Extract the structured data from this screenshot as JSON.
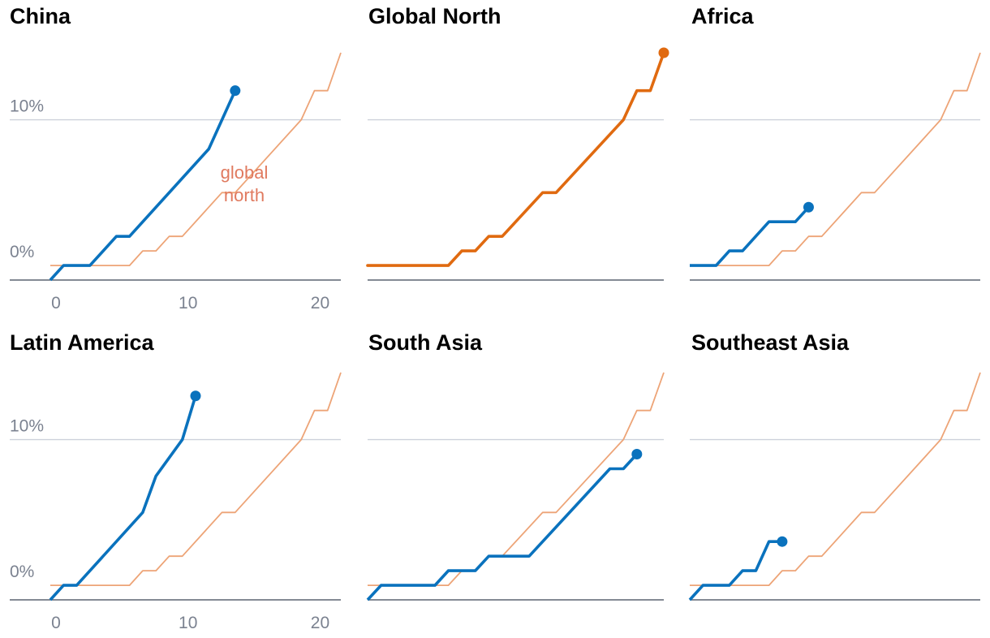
{
  "chart_data": {
    "type": "line",
    "x_axis": {
      "range": [
        0,
        22
      ],
      "ticks": [
        0,
        10,
        20
      ],
      "tick_labels": [
        "0",
        "10",
        "20"
      ]
    },
    "y_axis": {
      "range": [
        -1,
        14.6
      ],
      "gridlines": [
        0,
        10
      ],
      "tick_labels": [
        "0%",
        "10%"
      ]
    },
    "colors": {
      "region": "#0a72bd",
      "reference": "#eda477",
      "global_north": "#e06a10",
      "annotation": "#e07a5f",
      "grid": "#cdd1db",
      "axis": "#5c6470"
    },
    "reference_series": {
      "name": "global north",
      "x": [
        0,
        6,
        7,
        8,
        9,
        10,
        13,
        14,
        19,
        20,
        21,
        22
      ],
      "y": [
        0,
        0,
        1,
        1,
        2,
        2,
        5,
        5,
        10,
        12,
        12,
        14.6
      ]
    },
    "panels": [
      {
        "title": "China",
        "series_name": "China",
        "x": [
          0,
          1,
          3,
          5,
          6,
          12,
          14
        ],
        "y": [
          -1,
          0,
          0,
          2,
          2,
          8,
          12
        ],
        "annotation": [
          "global",
          "north"
        ],
        "show_y_labels": true,
        "show_x_labels": true
      },
      {
        "title": "Global North",
        "series_name": "Global North",
        "reference_only": true,
        "show_y_labels": false,
        "show_x_labels": false
      },
      {
        "title": "Africa",
        "series_name": "Africa",
        "x": [
          0,
          2,
          3,
          4,
          6,
          8,
          9
        ],
        "y": [
          0,
          0,
          1,
          1,
          3,
          3,
          4
        ],
        "show_y_labels": false,
        "show_x_labels": false
      },
      {
        "title": "Latin America",
        "series_name": "Latin America",
        "x": [
          0,
          1,
          2,
          7,
          8,
          10,
          11
        ],
        "y": [
          -1,
          0,
          0,
          5,
          7.5,
          10,
          13
        ],
        "show_y_labels": true,
        "show_x_labels": true
      },
      {
        "title": "South Asia",
        "series_name": "South Asia",
        "x": [
          0,
          1,
          5,
          6,
          8,
          9,
          12,
          18,
          19,
          20
        ],
        "y": [
          -1,
          0,
          0,
          1,
          1,
          2,
          2,
          8,
          8,
          9
        ],
        "show_y_labels": false,
        "show_x_labels": false
      },
      {
        "title": "Southeast Asia",
        "series_name": "Southeast Asia",
        "x": [
          0,
          1,
          3,
          4,
          5,
          6,
          7
        ],
        "y": [
          -1,
          0,
          0,
          1,
          1,
          3,
          3
        ],
        "show_y_labels": false,
        "show_x_labels": false
      }
    ]
  }
}
